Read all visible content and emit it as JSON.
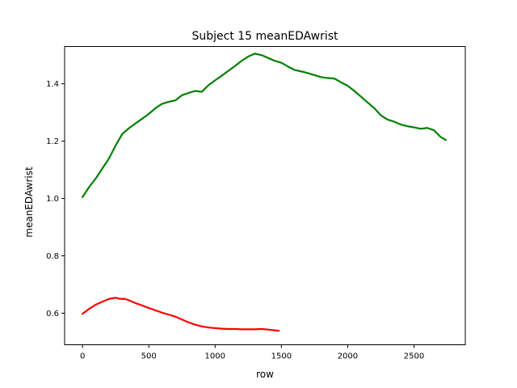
{
  "chart_data": {
    "type": "line",
    "title": "Subject 15 meanEDAwrist",
    "xlabel": "row",
    "ylabel": "meanEDAwrist",
    "xlim": [
      -135,
      2887
    ],
    "ylim": [
      0.49,
      1.53
    ],
    "xticks": [
      0,
      500,
      1000,
      1500,
      2000,
      2500
    ],
    "yticks": [
      0.6,
      0.8,
      1.0,
      1.2,
      1.4
    ],
    "xtick_labels": [
      "0",
      "500",
      "1000",
      "1500",
      "2000",
      "2500"
    ],
    "ytick_labels": [
      "0.6",
      "0.8",
      "1.0",
      "1.2",
      "1.4"
    ],
    "grid": false,
    "series": [
      {
        "color": "#008000",
        "x": [
          0,
          50,
          100,
          150,
          200,
          250,
          300,
          350,
          400,
          450,
          500,
          550,
          600,
          650,
          700,
          750,
          800,
          850,
          900,
          950,
          1000,
          1050,
          1100,
          1150,
          1200,
          1250,
          1300,
          1350,
          1400,
          1450,
          1500,
          1550,
          1600,
          1650,
          1700,
          1750,
          1800,
          1850,
          1900,
          1950,
          2000,
          2050,
          2100,
          2150,
          2200,
          2250,
          2300,
          2350,
          2400,
          2450,
          2500,
          2550,
          2600,
          2650,
          2700,
          2740
        ],
        "y": [
          1.005,
          1.04,
          1.07,
          1.105,
          1.14,
          1.185,
          1.225,
          1.245,
          1.262,
          1.278,
          1.295,
          1.315,
          1.33,
          1.337,
          1.342,
          1.36,
          1.368,
          1.375,
          1.372,
          1.395,
          1.412,
          1.428,
          1.445,
          1.462,
          1.48,
          1.495,
          1.505,
          1.5,
          1.49,
          1.48,
          1.473,
          1.46,
          1.448,
          1.443,
          1.437,
          1.43,
          1.423,
          1.42,
          1.418,
          1.405,
          1.393,
          1.375,
          1.355,
          1.335,
          1.315,
          1.29,
          1.275,
          1.268,
          1.258,
          1.252,
          1.248,
          1.243,
          1.246,
          1.238,
          1.215,
          1.204
        ]
      },
      {
        "color": "#ff0000",
        "x": [
          0,
          50,
          100,
          150,
          200,
          250,
          280,
          320,
          350,
          400,
          450,
          500,
          550,
          600,
          650,
          700,
          750,
          800,
          850,
          900,
          950,
          1000,
          1050,
          1100,
          1150,
          1200,
          1250,
          1300,
          1350,
          1400,
          1450,
          1480
        ],
        "y": [
          0.598,
          0.615,
          0.63,
          0.64,
          0.65,
          0.654,
          0.65,
          0.65,
          0.645,
          0.635,
          0.627,
          0.618,
          0.61,
          0.602,
          0.595,
          0.588,
          0.578,
          0.568,
          0.56,
          0.554,
          0.55,
          0.548,
          0.546,
          0.545,
          0.545,
          0.544,
          0.544,
          0.544,
          0.545,
          0.543,
          0.54,
          0.539
        ]
      }
    ]
  }
}
